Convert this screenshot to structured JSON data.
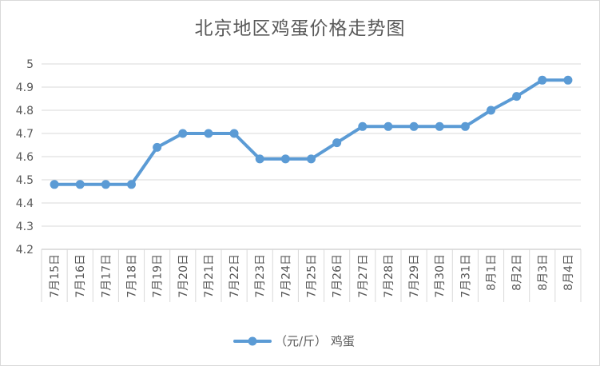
{
  "chart_data": {
    "type": "line",
    "title": "北京地区鸡蛋价格走势图",
    "categories": [
      "7月15日",
      "7月16日",
      "7月17日",
      "7月18日",
      "7月19日",
      "7月20日",
      "7月21日",
      "7月22日",
      "7月23日",
      "7月24日",
      "7月25日",
      "7月26日",
      "7月27日",
      "7月28日",
      "7月29日",
      "7月30日",
      "7月31日",
      "8月1日",
      "8月2日",
      "8月3日",
      "8月4日"
    ],
    "series": [
      {
        "name": "（元/斤） 鸡蛋",
        "color": "#5b9bd5",
        "values": [
          4.48,
          4.48,
          4.48,
          4.48,
          4.64,
          4.7,
          4.7,
          4.7,
          4.59,
          4.59,
          4.59,
          4.66,
          4.73,
          4.73,
          4.73,
          4.73,
          4.73,
          4.8,
          4.86,
          4.93,
          4.93
        ]
      }
    ],
    "yticks": [
      "4.2",
      "4.3",
      "4.4",
      "4.5",
      "4.6",
      "4.7",
      "4.8",
      "4.9",
      "5"
    ],
    "ylim": [
      4.2,
      5.0
    ],
    "grid": true,
    "legend": "bottom"
  }
}
